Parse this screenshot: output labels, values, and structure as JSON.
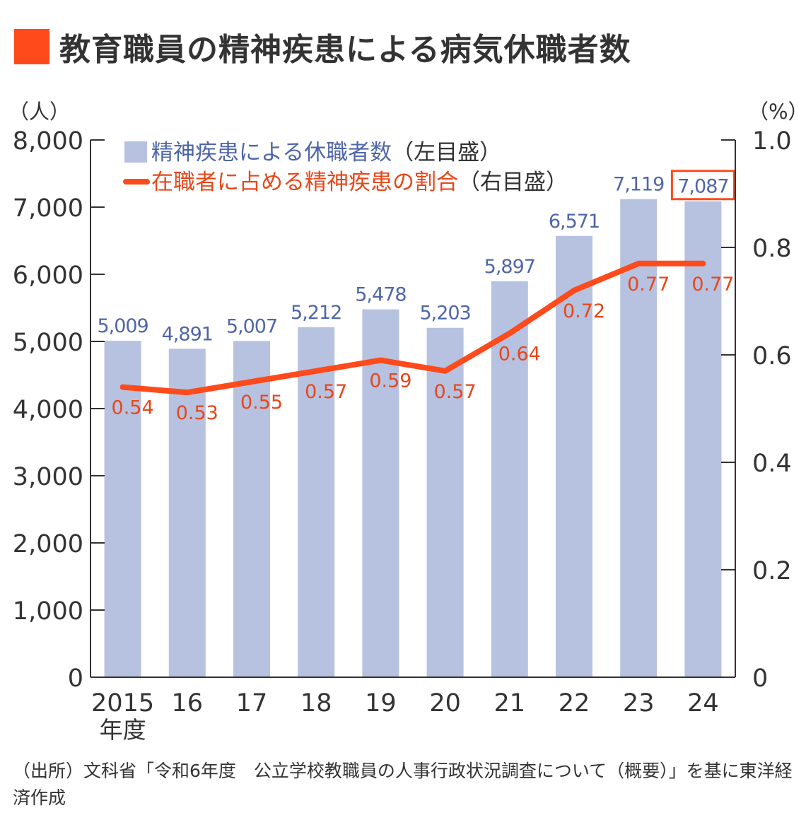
{
  "colors": {
    "accent": "#ff4a1c",
    "bar": "#b7c2e0",
    "bar_label": "#4f66a8",
    "line": "#ff4a1c",
    "line_label": "#e8471a",
    "axis": "#333333"
  },
  "chart_data": {
    "type": "bar",
    "title": "教育職員の精神疾患による病気休職者数",
    "categories": [
      "2015",
      "16",
      "17",
      "18",
      "19",
      "20",
      "21",
      "22",
      "23",
      "24"
    ],
    "x_unit": "年度",
    "y_left_unit": "（人）",
    "y_right_unit": "（%）",
    "ylim_left": [
      0,
      8000
    ],
    "yticks_left": [
      "0",
      "1,000",
      "2,000",
      "3,000",
      "4,000",
      "5,000",
      "6,000",
      "7,000",
      "8,000"
    ],
    "ylim_right": [
      0,
      1.0
    ],
    "yticks_right": [
      "0",
      "0.2",
      "0.4",
      "0.6",
      "0.8",
      "1.0"
    ],
    "legend_position": "top-left",
    "grid": false,
    "series": [
      {
        "name": "精神疾患による休職者数",
        "axis_note": "（左目盛）",
        "type": "bar",
        "values": [
          5009,
          4891,
          5007,
          5212,
          5478,
          5203,
          5897,
          6571,
          7119,
          7087
        ],
        "labels": [
          "5,009",
          "4,891",
          "5,007",
          "5,212",
          "5,478",
          "5,203",
          "5,897",
          "6,571",
          "7,119",
          "7,087"
        ]
      },
      {
        "name": "在職者に占める精神疾患の割合",
        "axis_note": "（右目盛）",
        "type": "line",
        "values": [
          0.54,
          0.53,
          0.55,
          0.57,
          0.59,
          0.57,
          0.64,
          0.72,
          0.77,
          0.77
        ],
        "labels": [
          "0.54",
          "0.53",
          "0.55",
          "0.57",
          "0.59",
          "0.57",
          "0.64",
          "0.72",
          "0.77",
          "0.77"
        ]
      }
    ],
    "highlighted_category": "24"
  },
  "source_text": "（出所）文科省「令和6年度　公立学校教職員の人事行政状況調査について（概要）」を基に東洋経済作成"
}
